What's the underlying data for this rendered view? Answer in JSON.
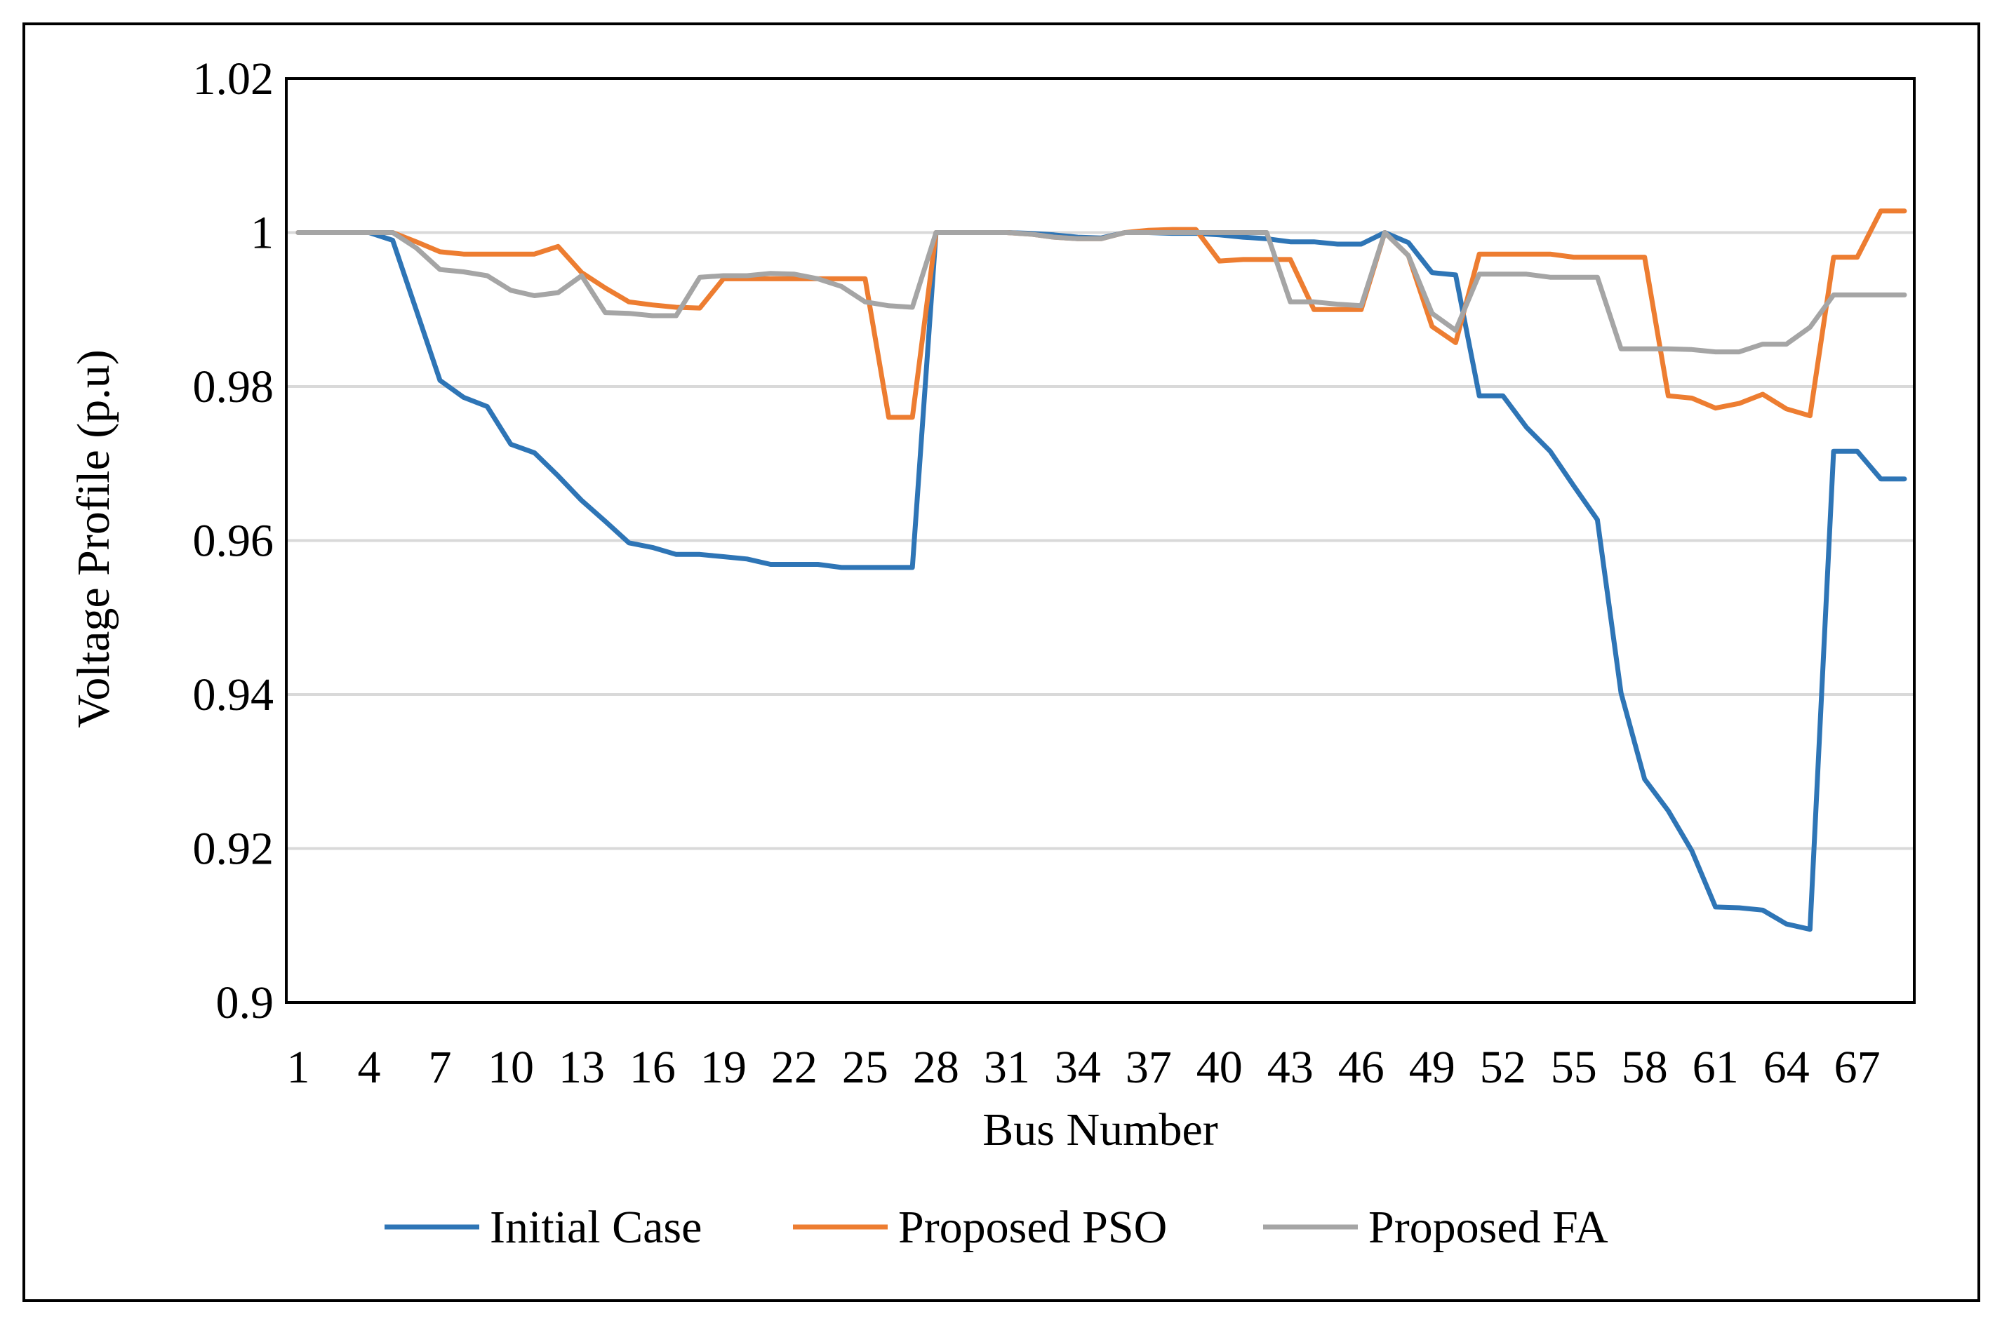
{
  "chart_data": {
    "type": "line",
    "title": "",
    "xlabel": "Bus Number",
    "ylabel": "Voltage Profile (p.u)",
    "ylim": [
      0.9,
      1.02
    ],
    "yticks": [
      "0.9",
      "0.92",
      "0.94",
      "0.96",
      "0.98",
      "1",
      "1.02"
    ],
    "xticks": [
      "1",
      "4",
      "7",
      "10",
      "13",
      "16",
      "19",
      "22",
      "25",
      "28",
      "31",
      "34",
      "37",
      "40",
      "43",
      "46",
      "49",
      "52",
      "55",
      "58",
      "61",
      "64",
      "67"
    ],
    "legend_position": "bottom",
    "grid": "horizontal",
    "x": [
      1,
      2,
      3,
      4,
      5,
      6,
      7,
      8,
      9,
      10,
      11,
      12,
      13,
      14,
      15,
      16,
      17,
      18,
      19,
      20,
      21,
      22,
      23,
      24,
      25,
      26,
      27,
      28,
      29,
      30,
      31,
      32,
      33,
      34,
      35,
      36,
      37,
      38,
      39,
      40,
      41,
      42,
      43,
      44,
      45,
      46,
      47,
      48,
      49,
      50,
      51,
      52,
      53,
      54,
      55,
      56,
      57,
      58,
      59,
      60,
      61,
      62,
      63,
      64,
      65,
      66,
      67,
      68,
      69
    ],
    "series": [
      {
        "name": "Initial Case",
        "color": "#2e75b6",
        "values": [
          1.0,
          1.0,
          1.0,
          1.0,
          0.999,
          0.9899,
          0.9808,
          0.9786,
          0.9774,
          0.9725,
          0.9714,
          0.9684,
          0.9652,
          0.9625,
          0.9597,
          0.9591,
          0.9582,
          0.9582,
          0.9579,
          0.9576,
          0.9569,
          0.9569,
          0.9569,
          0.9565,
          0.9565,
          0.9565,
          0.9565,
          1.0,
          1.0,
          1.0,
          1.0,
          0.9999,
          0.9997,
          0.9994,
          0.9993,
          1.0,
          1.0,
          0.9999,
          0.9999,
          0.9997,
          0.9994,
          0.9992,
          0.9988,
          0.9988,
          0.9985,
          0.9985,
          1.0,
          0.9987,
          0.9948,
          0.9945,
          0.9788,
          0.9788,
          0.9747,
          0.9716,
          0.9671,
          0.9627,
          0.9402,
          0.929,
          0.9249,
          0.9197,
          0.9124,
          0.9123,
          0.912,
          0.9102,
          0.9095,
          0.9716,
          0.9716,
          0.968,
          0.968
        ]
      },
      {
        "name": "Proposed PSO",
        "color": "#ed7d31",
        "values": [
          1.0,
          1.0,
          1.0,
          1.0,
          1.0,
          0.9988,
          0.9975,
          0.9972,
          0.9972,
          0.9972,
          0.9972,
          0.9982,
          0.9948,
          0.9928,
          0.991,
          0.9906,
          0.9903,
          0.9902,
          0.994,
          0.994,
          0.994,
          0.994,
          0.994,
          0.994,
          0.994,
          0.976,
          0.976,
          1.0,
          1.0,
          1.0,
          1.0,
          0.9998,
          0.9994,
          0.9992,
          0.9992,
          1.0,
          1.0003,
          1.0004,
          1.0004,
          0.9963,
          0.9965,
          0.9965,
          0.9965,
          0.99,
          0.99,
          0.99,
          1.0,
          0.997,
          0.9878,
          0.9857,
          0.9972,
          0.9972,
          0.9972,
          0.9972,
          0.9968,
          0.9968,
          0.9968,
          0.9968,
          0.9788,
          0.9785,
          0.9772,
          0.9778,
          0.979,
          0.9771,
          0.9762,
          0.9968,
          0.9968,
          1.0028,
          1.0028
        ]
      },
      {
        "name": "Proposed FA",
        "color": "#a5a5a5",
        "values": [
          1.0,
          1.0,
          1.0,
          1.0,
          1.0,
          0.998,
          0.9952,
          0.9949,
          0.9944,
          0.9925,
          0.9918,
          0.9922,
          0.9944,
          0.9896,
          0.9895,
          0.9892,
          0.9892,
          0.9942,
          0.9944,
          0.9944,
          0.9947,
          0.9946,
          0.994,
          0.993,
          0.991,
          0.9905,
          0.9903,
          1.0,
          1.0,
          1.0,
          1.0,
          0.9998,
          0.9994,
          0.9992,
          0.9992,
          1.0,
          1.0,
          1.0,
          1.0,
          1.0,
          1.0,
          1.0,
          0.991,
          0.991,
          0.9907,
          0.9905,
          1.0,
          0.997,
          0.9895,
          0.9873,
          0.9946,
          0.9946,
          0.9946,
          0.9942,
          0.9942,
          0.9942,
          0.9849,
          0.9849,
          0.9849,
          0.9848,
          0.9845,
          0.9845,
          0.9855,
          0.9855,
          0.9877,
          0.9919,
          0.9919,
          0.9919,
          0.9919
        ]
      }
    ]
  }
}
